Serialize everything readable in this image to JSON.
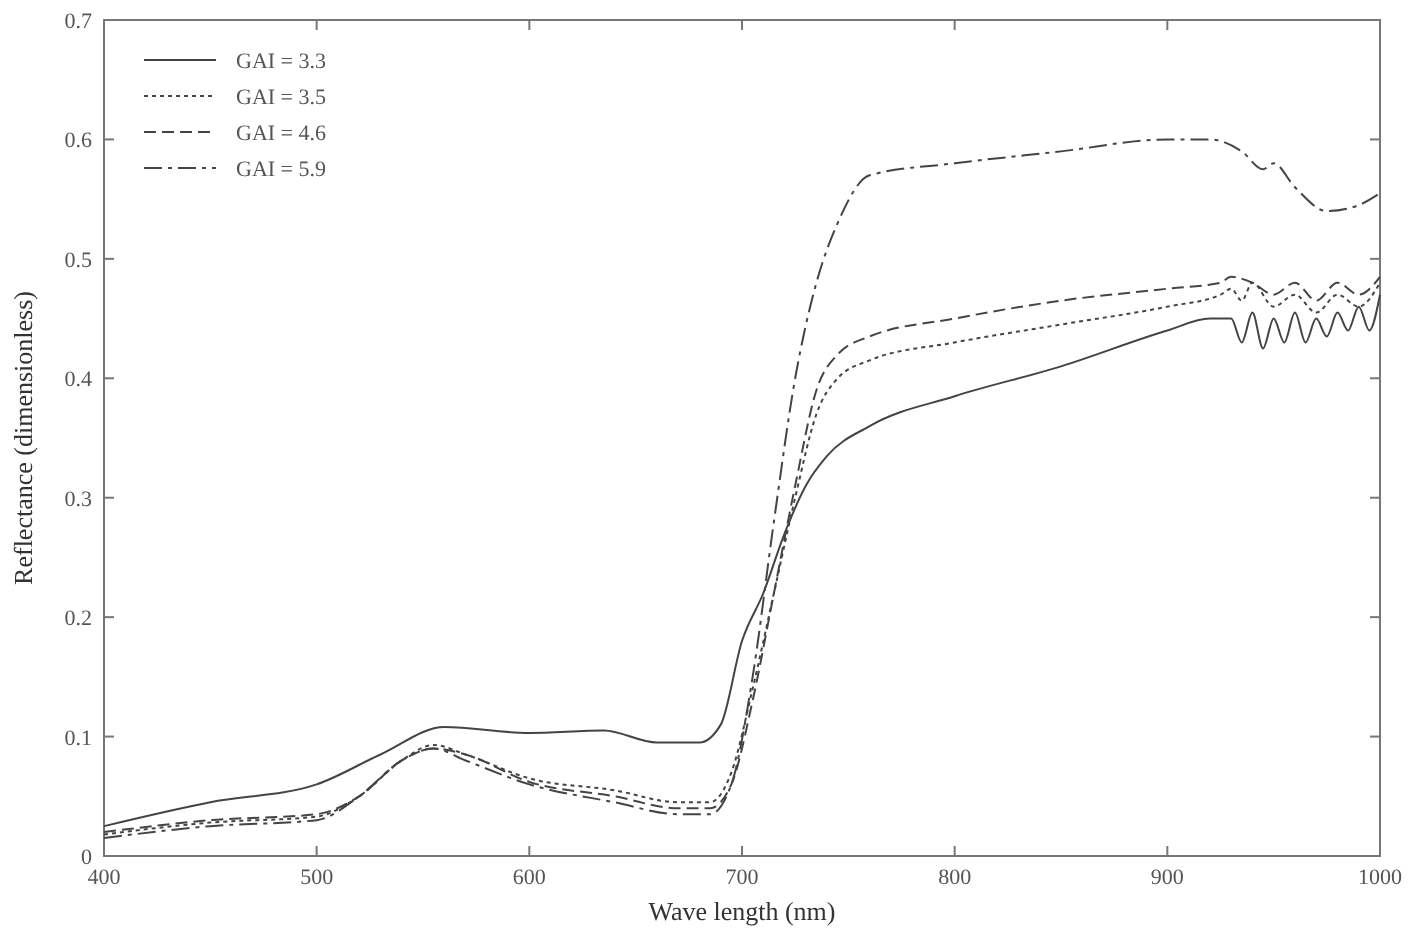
{
  "chart_data": {
    "type": "line",
    "xlabel": "Wave length (nm)",
    "ylabel": "Reflectance (dimensionless)",
    "xlim": [
      400,
      1000
    ],
    "ylim": [
      0,
      0.7
    ],
    "xticks": [
      400,
      500,
      600,
      700,
      800,
      900,
      1000
    ],
    "yticks": [
      0,
      0.1,
      0.2,
      0.3,
      0.4,
      0.5,
      0.6,
      0.7
    ],
    "grid": false,
    "legend": "top left",
    "series": [
      {
        "name": "GAI = 3.3",
        "color": "#444444",
        "line_style": "solid",
        "x": [
          400,
          450,
          500,
          530,
          560,
          600,
          635,
          660,
          680,
          690,
          700,
          710,
          720,
          730,
          740,
          760,
          800,
          850,
          900,
          920,
          930,
          935,
          940,
          945,
          950,
          955,
          960,
          965,
          970,
          975,
          980,
          985,
          990,
          995,
          1000
        ],
        "values": [
          0.025,
          0.045,
          0.06,
          0.085,
          0.108,
          0.103,
          0.105,
          0.095,
          0.095,
          0.11,
          0.18,
          0.22,
          0.27,
          0.31,
          0.335,
          0.36,
          0.385,
          0.41,
          0.44,
          0.45,
          0.45,
          0.43,
          0.455,
          0.425,
          0.45,
          0.43,
          0.455,
          0.43,
          0.45,
          0.435,
          0.455,
          0.44,
          0.46,
          0.44,
          0.47
        ]
      },
      {
        "name": "GAI = 3.5",
        "color": "#444444",
        "line_style": "dotted",
        "x": [
          400,
          450,
          500,
          520,
          540,
          555,
          570,
          600,
          640,
          670,
          685,
          695,
          705,
          715,
          725,
          735,
          745,
          760,
          800,
          850,
          900,
          925,
          930,
          935,
          940,
          950,
          960,
          970,
          980,
          990,
          1000
        ],
        "values": [
          0.018,
          0.028,
          0.033,
          0.05,
          0.08,
          0.093,
          0.085,
          0.065,
          0.055,
          0.045,
          0.045,
          0.07,
          0.14,
          0.22,
          0.3,
          0.37,
          0.4,
          0.415,
          0.43,
          0.445,
          0.46,
          0.47,
          0.475,
          0.465,
          0.48,
          0.46,
          0.47,
          0.455,
          0.47,
          0.46,
          0.48
        ]
      },
      {
        "name": "GAI = 4.6",
        "color": "#444444",
        "line_style": "dashed",
        "x": [
          400,
          450,
          500,
          520,
          540,
          555,
          570,
          600,
          640,
          670,
          685,
          695,
          705,
          715,
          725,
          735,
          745,
          760,
          800,
          850,
          900,
          925,
          930,
          940,
          950,
          960,
          970,
          980,
          990,
          1000
        ],
        "values": [
          0.02,
          0.03,
          0.035,
          0.05,
          0.08,
          0.09,
          0.085,
          0.062,
          0.05,
          0.04,
          0.04,
          0.06,
          0.13,
          0.22,
          0.31,
          0.39,
          0.42,
          0.435,
          0.45,
          0.465,
          0.475,
          0.48,
          0.485,
          0.48,
          0.47,
          0.48,
          0.465,
          0.48,
          0.47,
          0.485
        ]
      },
      {
        "name": "GAI = 5.9",
        "color": "#444444",
        "line_style": "dashdot",
        "x": [
          400,
          450,
          500,
          520,
          540,
          555,
          570,
          600,
          640,
          670,
          685,
          695,
          705,
          715,
          725,
          735,
          745,
          760,
          800,
          850,
          900,
          920,
          935,
          945,
          950,
          960,
          975,
          990,
          1000
        ],
        "values": [
          0.015,
          0.025,
          0.03,
          0.05,
          0.08,
          0.09,
          0.08,
          0.06,
          0.045,
          0.035,
          0.035,
          0.06,
          0.15,
          0.28,
          0.4,
          0.48,
          0.53,
          0.57,
          0.58,
          0.59,
          0.6,
          0.6,
          0.59,
          0.575,
          0.58,
          0.56,
          0.54,
          0.545,
          0.555
        ]
      }
    ]
  }
}
